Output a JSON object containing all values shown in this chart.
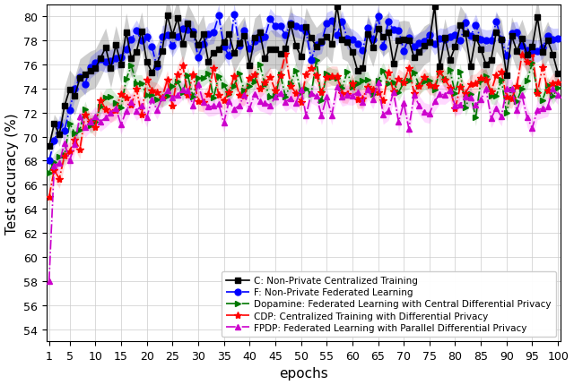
{
  "xlabel": "epochs",
  "ylabel": "Test accuracy (%)",
  "xlim": [
    1,
    100
  ],
  "ylim": [
    53,
    81
  ],
  "yticks": [
    54,
    56,
    58,
    60,
    62,
    64,
    66,
    68,
    70,
    72,
    74,
    76,
    78,
    80
  ],
  "xticks": [
    1,
    5,
    10,
    15,
    20,
    25,
    30,
    35,
    40,
    45,
    50,
    55,
    60,
    65,
    70,
    75,
    80,
    85,
    90,
    95,
    100
  ],
  "legend_labels": [
    "C: Non-Private Centralized Training",
    "F: Non-Private Federated Learning",
    "CDP: Centralized Training with Differential Privacy",
    "FPDP: Federated Learning with Parallel Differential Privacy",
    "Dopamine: Federated Learning with Central Differential Privacy"
  ],
  "colors": {
    "C": "#000000",
    "F": "#0000ff",
    "CDP": "#ff0000",
    "FPDP": "#cc00cc",
    "Dopamine": "#007700"
  },
  "markers": {
    "C": "s",
    "F": "o",
    "CDP": "*",
    "FPDP": "^",
    "Dopamine": ">"
  },
  "marker_sizes": {
    "C": 4,
    "F": 5,
    "CDP": 6,
    "FPDP": 5,
    "Dopamine": 5
  },
  "linewidth": 1.2
}
